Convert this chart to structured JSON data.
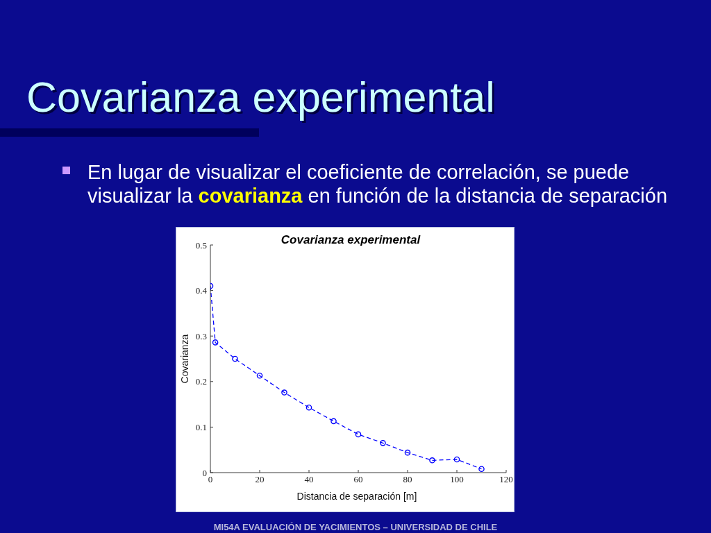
{
  "chart_data": {
    "type": "line",
    "title": "Covarianza experimental",
    "xlabel": "Distancia de separación [m]",
    "ylabel": "Covarianza",
    "x": [
      0,
      2,
      10,
      20,
      30,
      40,
      50,
      60,
      70,
      80,
      90,
      100,
      110
    ],
    "series": [
      {
        "color": "#0000ff",
        "values": [
          0.41,
          0.286,
          0.25,
          0.213,
          0.176,
          0.143,
          0.113,
          0.084,
          0.065,
          0.044,
          0.027,
          0.029,
          0.008
        ]
      }
    ],
    "xlim": [
      0,
      120
    ],
    "xticks": [
      0,
      20,
      40,
      60,
      80,
      100,
      120
    ],
    "ylim": [
      0,
      0.5
    ],
    "yticks": [
      0,
      0.1,
      0.2,
      0.3,
      0.4,
      0.5
    ],
    "marker": "circle",
    "line_style": "dashed",
    "annotations": [
      "Covarianza experimental",
      "En lugar de visualizar el coeficiente de correlación, se puede visualizar la ",
      "covarianza",
      " en función de la distancia de separación",
      "MI54A EVALUACIÓN DE YACIMIENTOS – UNIVERSIDAD DE CHILE"
    ]
  }
}
